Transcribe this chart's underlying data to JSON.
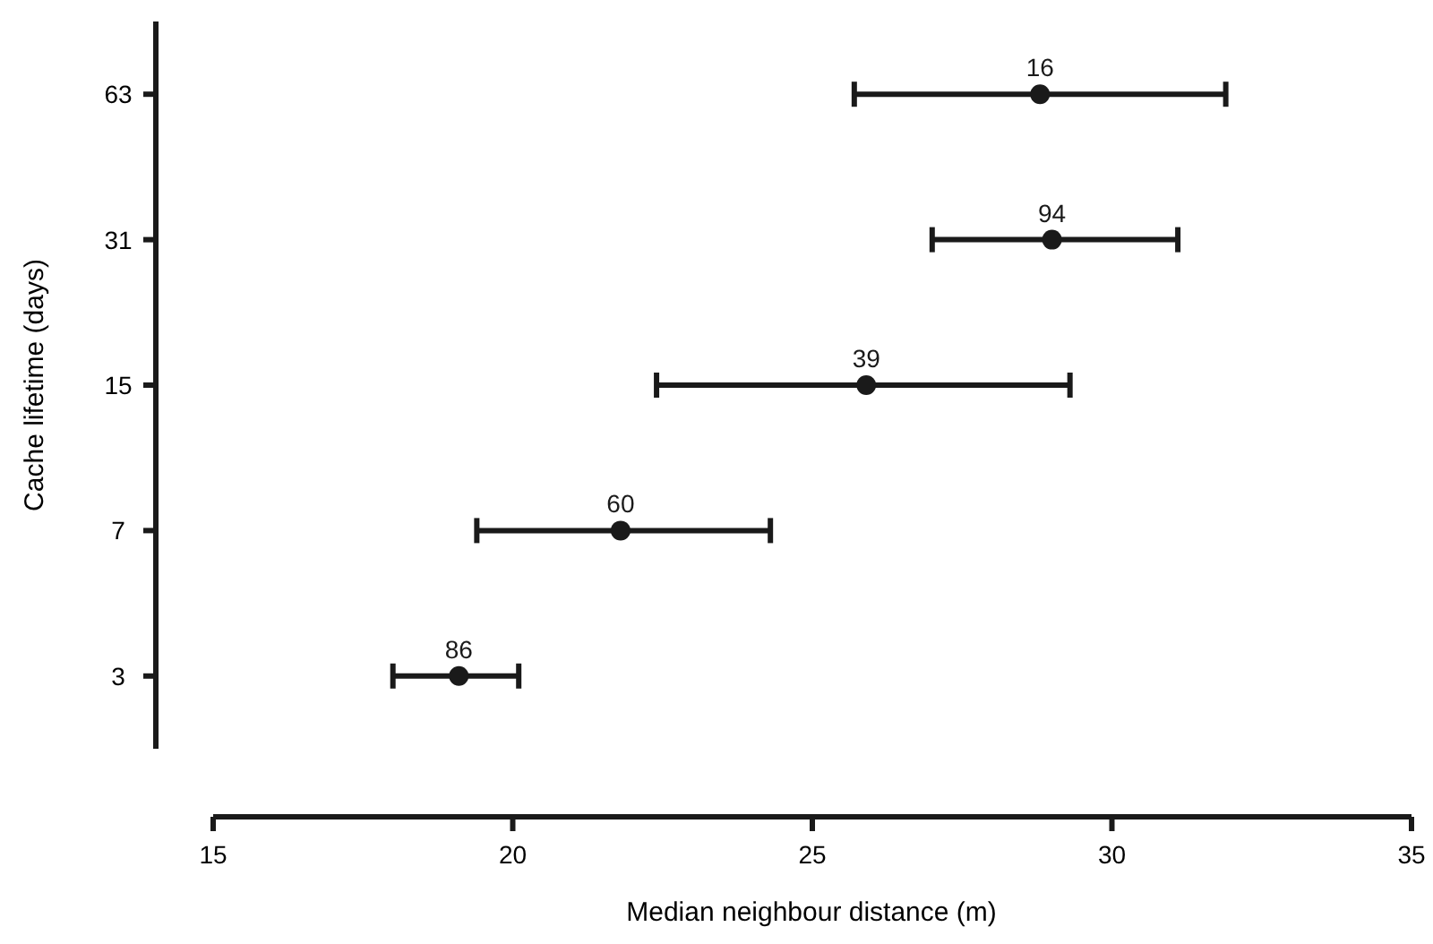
{
  "chart_data": {
    "type": "scatter",
    "orientation": "horizontal",
    "xlabel": "Median neighbour distance (m)",
    "ylabel": "Cache lifetime (days)",
    "categories": [
      "63",
      "31",
      "15",
      "7",
      "3"
    ],
    "values": [
      28.8,
      29.0,
      25.9,
      21.8,
      19.1
    ],
    "errors": [
      [
        25.7,
        31.9
      ],
      [
        27.0,
        31.1
      ],
      [
        22.4,
        29.3
      ],
      [
        19.4,
        24.3
      ],
      [
        18.0,
        20.1
      ]
    ],
    "annotations": [
      {
        "text": "16",
        "x": 28.8,
        "y": "63"
      },
      {
        "text": "94",
        "x": 29.0,
        "y": "31"
      },
      {
        "text": "39",
        "x": 25.9,
        "y": "15"
      },
      {
        "text": "60",
        "x": 21.8,
        "y": "7"
      },
      {
        "text": "86",
        "x": 19.1,
        "y": "3"
      }
    ],
    "color": "#1a1a1a",
    "marker": "circle",
    "xlim": [
      15,
      35
    ],
    "xticks": [
      15,
      20,
      25,
      30,
      35
    ]
  }
}
